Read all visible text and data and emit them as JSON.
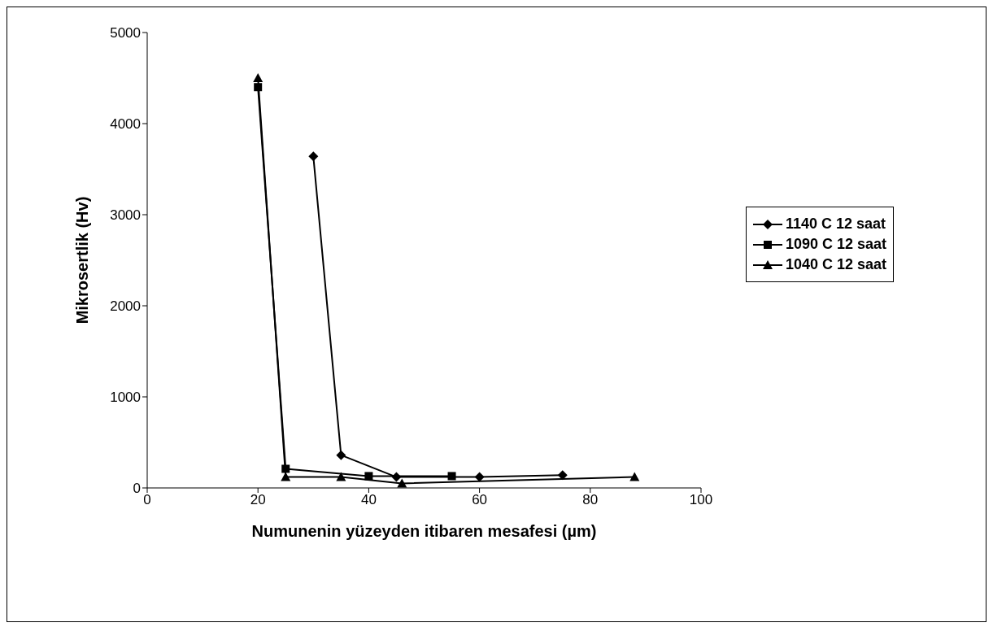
{
  "chart_data": {
    "type": "line",
    "xlabel": "Numunenin yüzeyden itibaren mesafesi (µm)",
    "ylabel": "Mikrosertlik (Hv)",
    "xlim": [
      0,
      100
    ],
    "xticks": [
      0,
      20,
      40,
      60,
      80,
      100
    ],
    "ylim": [
      0,
      5000
    ],
    "yticks": [
      0,
      1000,
      2000,
      3000,
      4000,
      5000
    ],
    "legend": "right",
    "line_style": "solid",
    "series": [
      {
        "name": "1140 C 12 saat",
        "color": "#000000",
        "marker": "diamond",
        "x": [
          30,
          35,
          45,
          60,
          75
        ],
        "values": [
          3640,
          360,
          120,
          120,
          140
        ]
      },
      {
        "name": "1090 C 12 saat",
        "color": "#000000",
        "marker": "square",
        "x": [
          20,
          25,
          40,
          55
        ],
        "values": [
          4400,
          210,
          130,
          130
        ]
      },
      {
        "name": "1040 C 12 saat",
        "color": "#000000",
        "marker": "triangle",
        "x": [
          20,
          25,
          35,
          46,
          88
        ],
        "values": [
          4500,
          120,
          120,
          50,
          120
        ]
      }
    ]
  }
}
